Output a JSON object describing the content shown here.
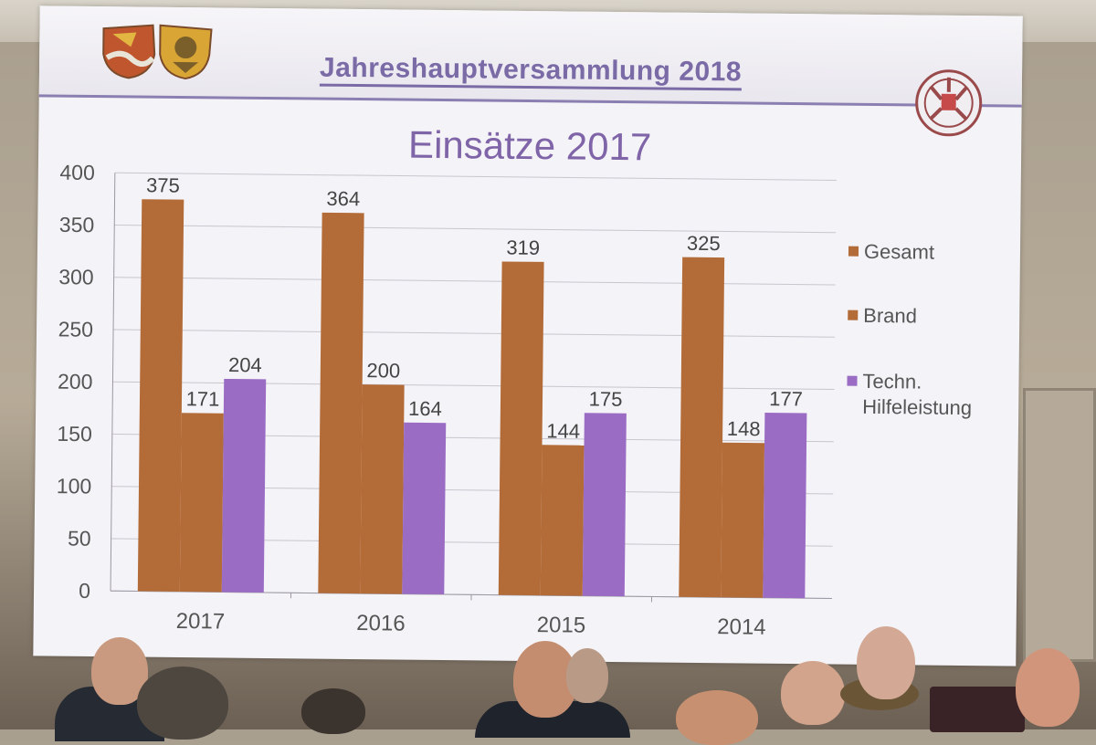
{
  "slide": {
    "header_title": "Jahreshauptversammlung 2018"
  },
  "chart_data": {
    "type": "bar",
    "title": "Einsätze 2017",
    "xlabel": "",
    "ylabel": "",
    "categories": [
      "2017",
      "2016",
      "2015",
      "2014"
    ],
    "ylim": [
      0,
      400
    ],
    "yticks": [
      0,
      50,
      100,
      150,
      200,
      250,
      300,
      350,
      400
    ],
    "grid": true,
    "legend_position": "right",
    "series": [
      {
        "name": "Gesamt",
        "values": [
          375,
          364,
          319,
          325
        ],
        "color": "#b36b38"
      },
      {
        "name": "Brand",
        "values": [
          171,
          200,
          144,
          148
        ],
        "color": "#b36b38"
      },
      {
        "name": "Techn. Hilfeleistung",
        "values": [
          204,
          164,
          175,
          177
        ],
        "color": "#9a6cc4"
      }
    ]
  },
  "colors": {
    "title_purple": "#7a6aa6",
    "bar_brown": "#b36b38",
    "bar_purple": "#9a6cc4"
  }
}
